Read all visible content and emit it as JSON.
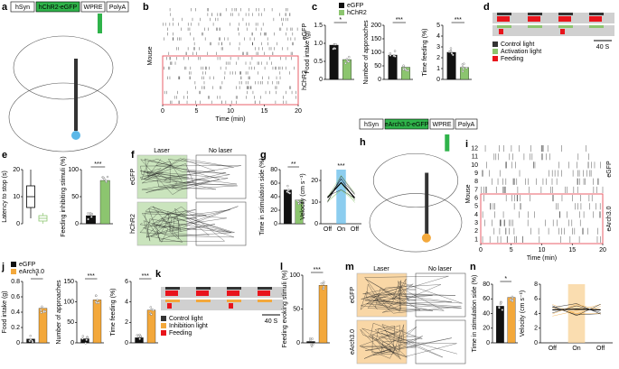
{
  "panel_labels": [
    "a",
    "b",
    "c",
    "d",
    "e",
    "f",
    "g",
    "h",
    "i",
    "j",
    "k",
    "l",
    "m",
    "n"
  ],
  "a": {
    "construct": [
      "hSyn",
      "hChR2-eGFP",
      "WPRE",
      "PolyA"
    ]
  },
  "b": {
    "y_label": "Mouse",
    "x_label": "Time (min)",
    "xlim": [
      0,
      20
    ],
    "xticks": [
      0,
      5,
      10,
      15,
      20
    ],
    "groups": [
      "eGFP",
      "hChR2"
    ]
  },
  "c": {
    "legend": [
      {
        "name": "eGFP",
        "color": "#111111"
      },
      {
        "name": "hChR2",
        "color": "#8cc56f"
      }
    ],
    "charts": [
      {
        "ylabel": "Food intake (g)",
        "ylim": [
          0,
          1.5
        ],
        "yticks": [
          0,
          0.5,
          {
            "value": 1,
            "label": "1.0"
          },
          1.5
        ],
        "values": [
          0.95,
          0.55
        ],
        "sig": "*"
      },
      {
        "ylabel": "Number of approaches",
        "ylim": [
          0,
          200
        ],
        "yticks": [
          0,
          50,
          100,
          150,
          200
        ],
        "values": [
          90,
          45
        ],
        "sig": "***"
      },
      {
        "ylabel": "Time feeding (%)",
        "ylim": [
          0,
          5
        ],
        "yticks": [
          0,
          1,
          2,
          3,
          4,
          5
        ],
        "values": [
          2.5,
          1.1
        ],
        "sig": "***"
      }
    ]
  },
  "d": {
    "legend": [
      "Control light",
      "Activation light",
      "Feeding"
    ],
    "colors": [
      "#333333",
      "#8cc56f",
      "#e8141b"
    ],
    "scale": "40 S"
  },
  "e": {
    "colors": [
      "#111111",
      "#8cc56f"
    ],
    "box": {
      "ylabel": "Latency to stop (s)",
      "ylim": [
        0,
        20
      ],
      "yticks": [
        0,
        10,
        20
      ],
      "boxes": [
        [
          2,
          6,
          10,
          14,
          20
        ],
        [
          0,
          1,
          2,
          3,
          4
        ]
      ]
    },
    "chart": {
      "ylabel": "Feeding inhibiting stimuli (%)",
      "ylim": [
        0,
        100
      ],
      "yticks": [
        0,
        50,
        100
      ],
      "values": [
        15,
        80
      ],
      "sig": "***"
    }
  },
  "f": {
    "labels": [
      "Laser",
      "No laser"
    ],
    "groups": [
      "eGFP",
      "hChR2"
    ]
  },
  "g": {
    "colors": [
      "#111111",
      "#8cc56f"
    ],
    "band": "#5bb8e8",
    "chart": {
      "ylabel": "Time in stimulation side (%)",
      "ylim": [
        0,
        80
      ],
      "yticks": [
        0,
        20,
        40,
        60,
        80
      ],
      "values": [
        50,
        35
      ],
      "sig": "**"
    },
    "velocity": {
      "ylabel": "Velocity (cm s⁻¹)",
      "ylim": [
        0,
        25
      ],
      "yticks": [
        0,
        10,
        20
      ],
      "categories": [
        "Off",
        "On",
        "Off"
      ],
      "values": [
        12,
        19,
        12
      ],
      "sig": "***"
    }
  },
  "h": {
    "construct": [
      "hSyn",
      "eArch3.0-eGFP",
      "WPRE",
      "PolyA"
    ]
  },
  "i": {
    "y_label": "Mouse",
    "x_label": "Time (min)",
    "xlim": [
      0,
      20
    ],
    "xticks": [
      0,
      5,
      10,
      15,
      20
    ],
    "yticks": [
      1,
      2,
      3,
      4,
      5,
      6,
      7,
      8,
      9,
      10,
      11,
      12
    ],
    "groups": [
      "eGFP",
      "eArch3.0"
    ]
  },
  "j": {
    "legend": [
      {
        "name": "eGFP",
        "color": "#111111"
      },
      {
        "name": "eArch3.0",
        "color": "#f3a83b"
      }
    ],
    "charts": [
      {
        "ylabel": "Food intake (g)",
        "ylim": [
          0,
          0.8
        ],
        "yticks": [
          0,
          0.2,
          0.4,
          0.6,
          0.8
        ],
        "values": [
          0.05,
          0.45
        ],
        "sig": "*"
      },
      {
        "ylabel": "Number of approaches",
        "ylim": [
          0,
          150
        ],
        "yticks": [
          0,
          50,
          100,
          150
        ],
        "values": [
          10,
          105
        ],
        "sig": "***"
      },
      {
        "ylabel": "Time feeding (%)",
        "ylim": [
          0,
          6
        ],
        "yticks": [
          0,
          2,
          4,
          6
        ],
        "values": [
          0.5,
          3.2
        ],
        "sig": "***"
      }
    ]
  },
  "k": {
    "legend": [
      "Control light",
      "Inhibition light",
      "Feeding"
    ],
    "colors": [
      "#333333",
      "#f3a83b",
      "#e8141b"
    ],
    "scale": "40 S"
  },
  "l": {
    "colors": [
      "#111111",
      "#f3a83b"
    ],
    "chart": {
      "ylabel": "Feeding evoking stimuli (%)",
      "ylim": [
        0,
        100
      ],
      "yticks": [
        0,
        50,
        100
      ],
      "values": [
        2,
        85
      ],
      "sig": "***"
    }
  },
  "m": {
    "labels": [
      "Laser",
      "No laser"
    ],
    "groups": [
      "eGFP",
      "eArch3.0"
    ]
  },
  "n": {
    "colors": [
      "#111111",
      "#f3a83b"
    ],
    "band": "#f8cf8f",
    "chart": {
      "ylabel": "Time in stimulation side (%)",
      "ylim": [
        0,
        80
      ],
      "yticks": [
        0,
        20,
        40,
        60,
        80
      ],
      "values": [
        50,
        62
      ],
      "sig": "*"
    },
    "velocity": {
      "ylabel": "Velocity (cm s⁻¹)",
      "ylim": [
        0,
        8
      ],
      "yticks": [
        0,
        2,
        4,
        6,
        8
      ],
      "categories": [
        "Off",
        "On",
        "Off"
      ],
      "values": [
        4.5,
        4.6,
        4.5
      ]
    }
  }
}
